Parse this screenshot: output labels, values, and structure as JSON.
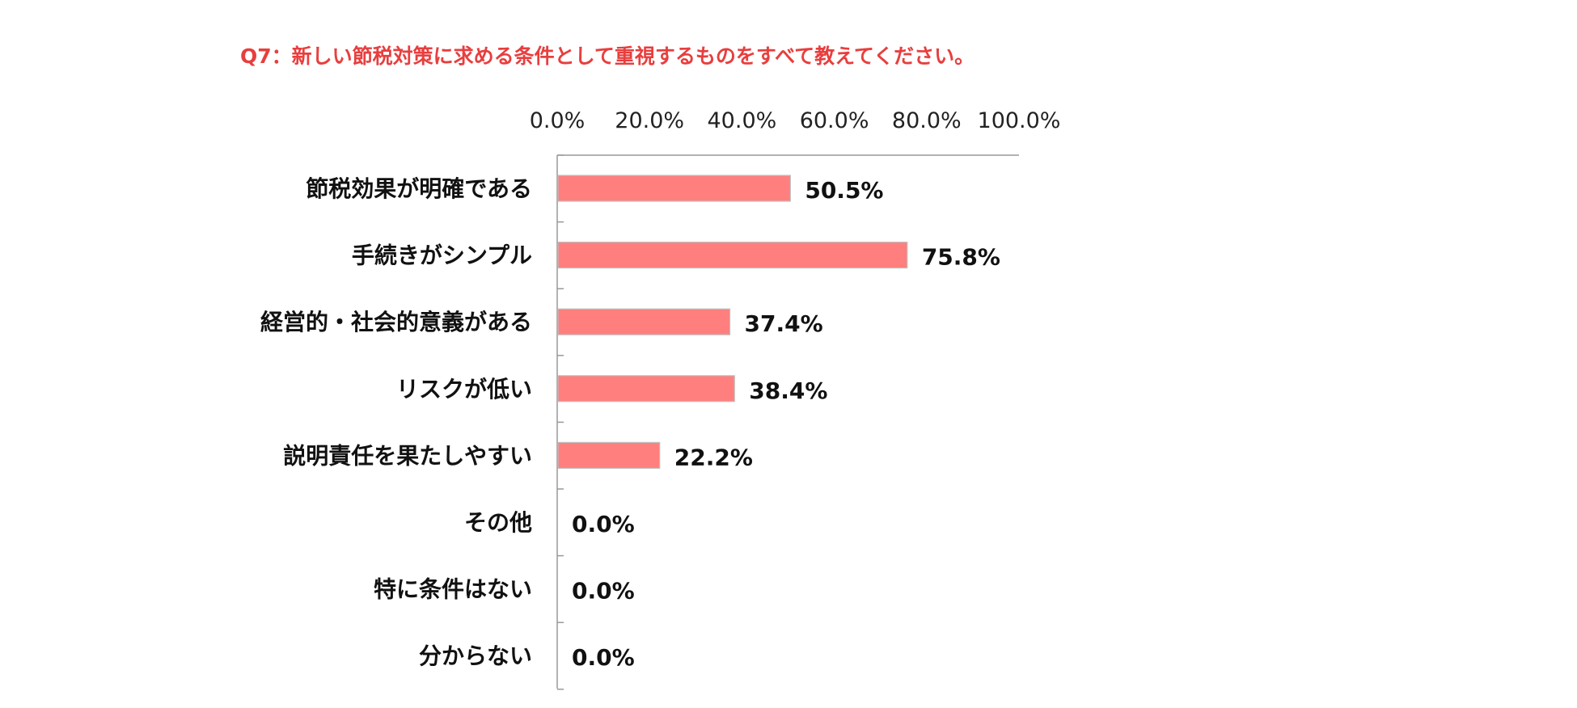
{
  "chart_data": {
    "type": "bar",
    "orientation": "horizontal",
    "title": "Q7：新しい節税対策に求める条件として重視するものをすべて教えてください。",
    "xlabel": "",
    "ylabel": "",
    "xlim": [
      0,
      100
    ],
    "ticks": [
      "0.0%",
      "20.0%",
      "40.0%",
      "60.0%",
      "80.0%",
      "100.0%"
    ],
    "tick_axis_position": "top",
    "grid": false,
    "legend": "none",
    "categories": [
      "節税効果が明確である",
      "手続きがシンプル",
      "経営的・社会的意義がある",
      "リスクが低い",
      "説明責任を果たしやすい",
      "その他",
      "特に条件はない",
      "分からない"
    ],
    "values": [
      50.5,
      75.8,
      37.4,
      38.4,
      22.2,
      0.0,
      0.0,
      0.0
    ],
    "value_labels": [
      "50.5%",
      "75.8%",
      "37.4%",
      "38.4%",
      "22.2%",
      "0.0%",
      "0.0%",
      "0.0%"
    ]
  },
  "colors": {
    "bar": "#ff7f7f",
    "bar_border": "#c0c0c0",
    "title": "#e83e3e",
    "axis": "#999999"
  }
}
